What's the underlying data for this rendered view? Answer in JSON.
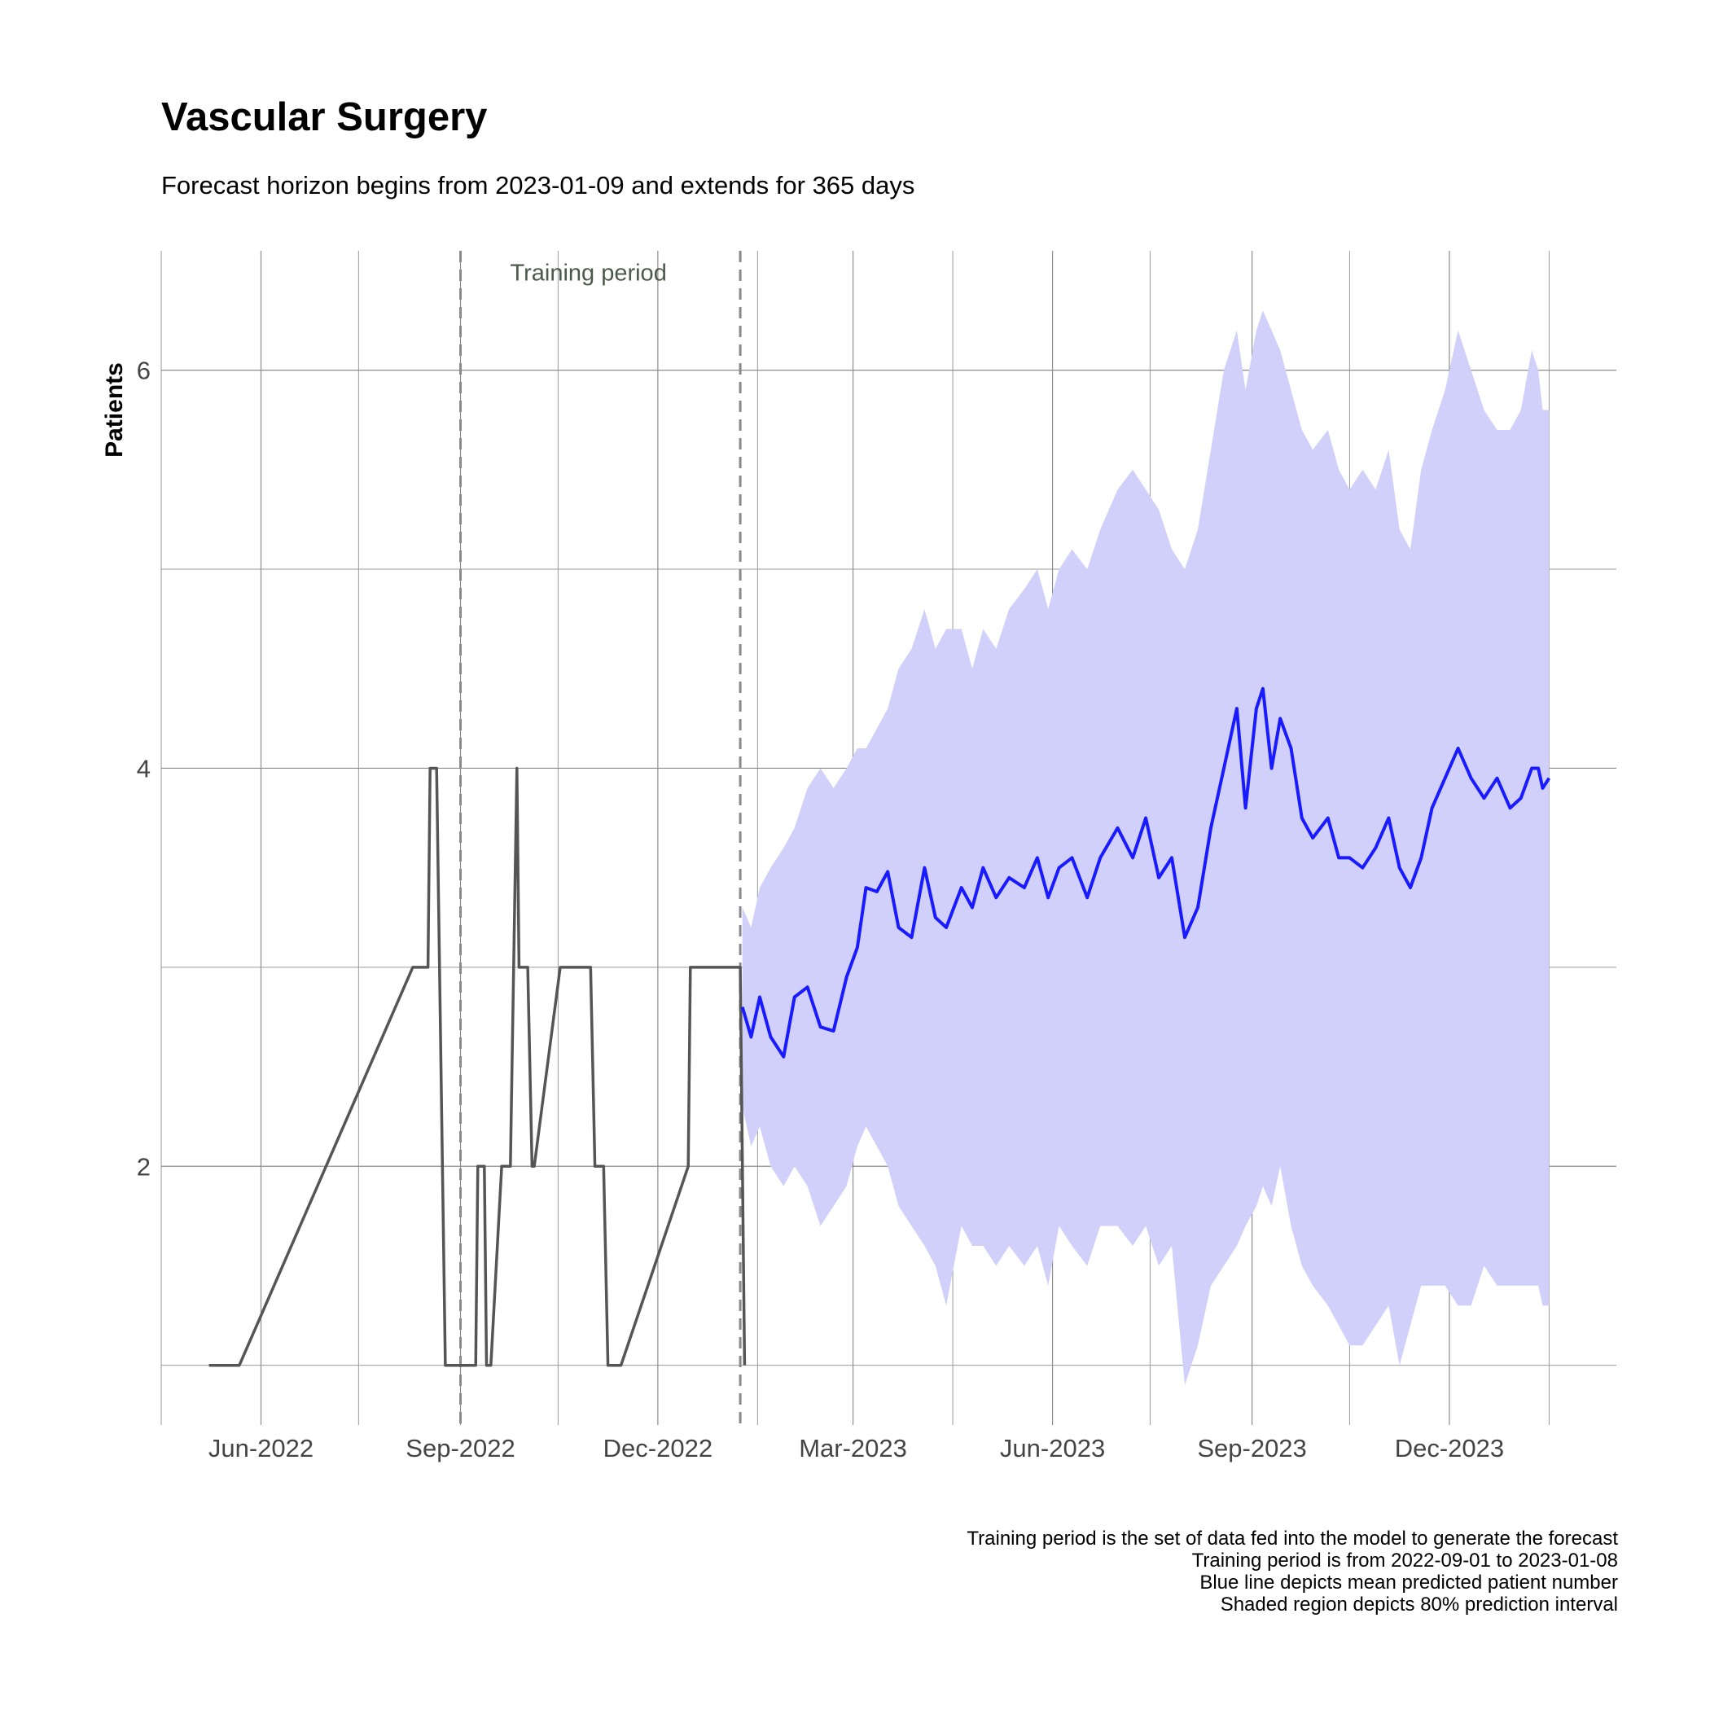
{
  "chart_data": {
    "type": "line",
    "title": "Vascular Surgery",
    "subtitle": "Forecast horizon begins from 2023-01-09 and extends for 365 days",
    "xlabel": "",
    "ylabel": "Patients",
    "x_type": "date",
    "xlim": [
      "2022-04-16",
      "2024-02-16"
    ],
    "ylim": [
      0.7,
      6.6
    ],
    "x_ticks": [
      {
        "date": "2022-06-01",
        "label": "Jun-2022"
      },
      {
        "date": "2022-09-01",
        "label": "Sep-2022"
      },
      {
        "date": "2022-12-01",
        "label": "Dec-2022"
      },
      {
        "date": "2023-03-01",
        "label": "Mar-2023"
      },
      {
        "date": "2023-06-01",
        "label": "Jun-2023"
      },
      {
        "date": "2023-09-01",
        "label": "Sep-2023"
      },
      {
        "date": "2023-12-01",
        "label": "Dec-2023"
      }
    ],
    "x_minor_ticks": [
      "2022-04-16",
      "2022-07-16",
      "2022-10-16",
      "2023-01-16",
      "2023-04-16",
      "2023-07-16",
      "2023-10-16",
      "2024-01-16"
    ],
    "y_ticks": [
      2,
      4,
      6
    ],
    "y_minor_ticks": [
      1,
      3,
      5
    ],
    "grid": true,
    "annotations": [
      {
        "type": "vline",
        "x": "2022-09-01",
        "style": "dashed"
      },
      {
        "type": "vline",
        "x": "2023-01-08",
        "style": "dashed"
      },
      {
        "type": "text",
        "text": "Training period",
        "x": "2022-10-30",
        "y": 6.5
      }
    ],
    "series": [
      {
        "kind": "observed",
        "color": "#555555",
        "points": [
          [
            "2022-05-08",
            1
          ],
          [
            "2022-05-22",
            1
          ],
          [
            "2022-08-10",
            3
          ],
          [
            "2022-08-17",
            3
          ],
          [
            "2022-08-18",
            4
          ],
          [
            "2022-08-21",
            4
          ],
          [
            "2022-08-25",
            1
          ],
          [
            "2022-09-08",
            1
          ],
          [
            "2022-09-09",
            2
          ],
          [
            "2022-09-12",
            2
          ],
          [
            "2022-09-13",
            1
          ],
          [
            "2022-09-15",
            1
          ],
          [
            "2022-09-20",
            2
          ],
          [
            "2022-09-24",
            2
          ],
          [
            "2022-09-27",
            4
          ],
          [
            "2022-09-28",
            3
          ],
          [
            "2022-10-02",
            3
          ],
          [
            "2022-10-04",
            2
          ],
          [
            "2022-10-05",
            2
          ],
          [
            "2022-10-17",
            3
          ],
          [
            "2022-10-31",
            3
          ],
          [
            "2022-11-02",
            2
          ],
          [
            "2022-11-06",
            2
          ],
          [
            "2022-11-08",
            1
          ],
          [
            "2022-11-14",
            1
          ],
          [
            "2022-12-15",
            2
          ],
          [
            "2022-12-16",
            3
          ],
          [
            "2023-01-08",
            3
          ],
          [
            "2023-01-10",
            1
          ]
        ]
      },
      {
        "kind": "forecast-mean",
        "name": "",
        "color": "#1a1aff",
        "interval_color": "#d0d0fb",
        "interval_level": "80%",
        "points": [
          [
            "2023-01-09",
            2.8,
            2.3,
            3.3
          ],
          [
            "2023-01-13",
            2.65,
            2.1,
            3.2
          ],
          [
            "2023-01-17",
            2.85,
            2.2,
            3.4
          ],
          [
            "2023-01-22",
            2.65,
            2.0,
            3.5
          ],
          [
            "2023-01-28",
            2.55,
            1.9,
            3.6
          ],
          [
            "2023-02-02",
            2.85,
            2.0,
            3.7
          ],
          [
            "2023-02-08",
            2.9,
            1.9,
            3.9
          ],
          [
            "2023-02-14",
            2.7,
            1.7,
            4.0
          ],
          [
            "2023-02-20",
            2.68,
            1.8,
            3.9
          ],
          [
            "2023-02-26",
            2.95,
            1.9,
            4.0
          ],
          [
            "2023-03-03",
            3.1,
            2.1,
            4.1
          ],
          [
            "2023-03-07",
            3.4,
            2.2,
            4.1
          ],
          [
            "2023-03-12",
            3.38,
            2.1,
            4.2
          ],
          [
            "2023-03-17",
            3.48,
            2.0,
            4.3
          ],
          [
            "2023-03-22",
            3.2,
            1.8,
            4.5
          ],
          [
            "2023-03-28",
            3.15,
            1.7,
            4.6
          ],
          [
            "2023-04-03",
            3.5,
            1.6,
            4.8
          ],
          [
            "2023-04-08",
            3.25,
            1.5,
            4.6
          ],
          [
            "2023-04-13",
            3.2,
            1.3,
            4.7
          ],
          [
            "2023-04-20",
            3.4,
            1.7,
            4.7
          ],
          [
            "2023-04-25",
            3.3,
            1.6,
            4.5
          ],
          [
            "2023-04-30",
            3.5,
            1.6,
            4.7
          ],
          [
            "2023-05-06",
            3.35,
            1.5,
            4.6
          ],
          [
            "2023-05-12",
            3.45,
            1.6,
            4.8
          ],
          [
            "2023-05-19",
            3.4,
            1.5,
            4.9
          ],
          [
            "2023-05-25",
            3.55,
            1.6,
            5.0
          ],
          [
            "2023-05-30",
            3.35,
            1.4,
            4.8
          ],
          [
            "2023-06-04",
            3.5,
            1.7,
            5.0
          ],
          [
            "2023-06-10",
            3.55,
            1.6,
            5.1
          ],
          [
            "2023-06-17",
            3.35,
            1.5,
            5.0
          ],
          [
            "2023-06-23",
            3.55,
            1.7,
            5.2
          ],
          [
            "2023-07-01",
            3.7,
            1.7,
            5.4
          ],
          [
            "2023-07-08",
            3.55,
            1.6,
            5.5
          ],
          [
            "2023-07-14",
            3.75,
            1.7,
            5.4
          ],
          [
            "2023-07-20",
            3.45,
            1.5,
            5.3
          ],
          [
            "2023-07-26",
            3.55,
            1.6,
            5.1
          ],
          [
            "2023-08-01",
            3.15,
            0.9,
            5.0
          ],
          [
            "2023-08-07",
            3.3,
            1.1,
            5.2
          ],
          [
            "2023-08-13",
            3.7,
            1.4,
            5.6
          ],
          [
            "2023-08-19",
            4.0,
            1.5,
            6.0
          ],
          [
            "2023-08-25",
            4.3,
            1.6,
            6.2
          ],
          [
            "2023-08-29",
            3.8,
            1.7,
            5.9
          ],
          [
            "2023-09-03",
            4.3,
            1.8,
            6.2
          ],
          [
            "2023-09-06",
            4.4,
            1.9,
            6.3
          ],
          [
            "2023-09-10",
            4.0,
            1.8,
            6.2
          ],
          [
            "2023-09-14",
            4.25,
            2.0,
            6.1
          ],
          [
            "2023-09-19",
            4.1,
            1.7,
            5.9
          ],
          [
            "2023-09-24",
            3.75,
            1.5,
            5.7
          ],
          [
            "2023-09-29",
            3.65,
            1.4,
            5.6
          ],
          [
            "2023-10-06",
            3.75,
            1.3,
            5.7
          ],
          [
            "2023-10-11",
            3.55,
            1.2,
            5.5
          ],
          [
            "2023-10-16",
            3.55,
            1.1,
            5.4
          ],
          [
            "2023-10-22",
            3.5,
            1.1,
            5.5
          ],
          [
            "2023-10-28",
            3.6,
            1.2,
            5.4
          ],
          [
            "2023-11-03",
            3.75,
            1.3,
            5.6
          ],
          [
            "2023-11-08",
            3.5,
            1.0,
            5.2
          ],
          [
            "2023-11-13",
            3.4,
            1.2,
            5.1
          ],
          [
            "2023-11-18",
            3.55,
            1.4,
            5.5
          ],
          [
            "2023-11-23",
            3.8,
            1.4,
            5.7
          ],
          [
            "2023-11-29",
            3.95,
            1.4,
            5.9
          ],
          [
            "2023-12-05",
            4.1,
            1.3,
            6.2
          ],
          [
            "2023-12-11",
            3.95,
            1.3,
            6.0
          ],
          [
            "2023-12-17",
            3.85,
            1.5,
            5.8
          ],
          [
            "2023-12-23",
            3.95,
            1.4,
            5.7
          ],
          [
            "2023-12-29",
            3.8,
            1.4,
            5.7
          ],
          [
            "2024-01-03",
            3.85,
            1.4,
            5.8
          ],
          [
            "2024-01-08",
            4.0,
            1.4,
            6.1
          ],
          [
            "2024-01-11",
            4.0,
            1.4,
            6.0
          ],
          [
            "2024-01-13",
            3.9,
            1.3,
            5.8
          ],
          [
            "2024-01-16",
            3.95,
            1.3,
            5.8
          ]
        ]
      }
    ],
    "caption": [
      "Training period is the set of data fed into the model to generate the forecast",
      "Training period is from 2022-09-01 to 2023-01-08",
      "Blue line depicts mean predicted patient number",
      "Shaded region depicts 80% prediction interval"
    ]
  }
}
